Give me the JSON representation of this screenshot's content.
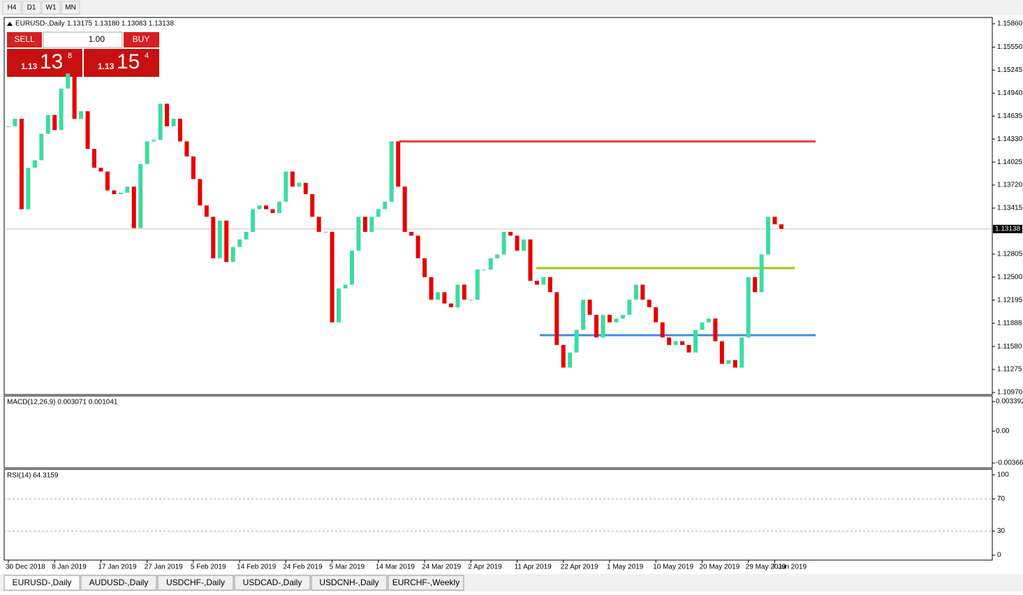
{
  "timeframes": [
    "H4",
    "D1",
    "W1",
    "MN"
  ],
  "trade_panel": {
    "sell": "SELL",
    "buy": "BUY",
    "lot": "1.00",
    "sell_price": {
      "big": "1.13",
      "pips": "13",
      "frac": "8"
    },
    "buy_price": {
      "big": "1.13",
      "pips": "15",
      "frac": "4"
    }
  },
  "chart_data": {
    "type": "candlestick",
    "title": "EURUSD-,Daily",
    "ohlc_text": "1.13175 1.13180 1.13083 1.13138",
    "categories": [
      "30 Dec 2018",
      null,
      null,
      null,
      null,
      null,
      null,
      "8 Jan 2019",
      null,
      null,
      null,
      null,
      null,
      null,
      "17 Jan 2019",
      null,
      null,
      null,
      null,
      null,
      null,
      "27 Jan 2019",
      null,
      null,
      null,
      null,
      null,
      null,
      "5 Feb 2019",
      null,
      null,
      null,
      null,
      null,
      null,
      "14 Feb 2019",
      null,
      null,
      null,
      null,
      null,
      null,
      "24 Feb 2019",
      null,
      null,
      null,
      null,
      null,
      null,
      "5 Mar 2019",
      null,
      null,
      null,
      null,
      null,
      null,
      "14 Mar 2019",
      null,
      null,
      null,
      null,
      null,
      null,
      "24 Mar 2019",
      null,
      null,
      null,
      null,
      null,
      null,
      "2 Apr 2019",
      null,
      null,
      null,
      null,
      null,
      null,
      "11 Apr 2019",
      null,
      null,
      null,
      null,
      null,
      null,
      "22 Apr 2019",
      null,
      null,
      null,
      null,
      null,
      null,
      "1 May 2019",
      null,
      null,
      null,
      null,
      null,
      null,
      "10 May 2019",
      null,
      null,
      null,
      null,
      null,
      null,
      "20 May 2019",
      null,
      null,
      null,
      null,
      null,
      null,
      "29 May 2019",
      null,
      null,
      null,
      "7 Jun 2019",
      null
    ],
    "values": [
      1.145,
      1.146,
      1.134,
      1.1395,
      1.1405,
      1.144,
      1.1465,
      1.1445,
      1.15,
      1.152,
      1.146,
      1.147,
      1.142,
      1.1395,
      1.139,
      1.1365,
      1.136,
      1.1362,
      1.137,
      1.1315,
      1.14,
      1.143,
      1.1432,
      1.148,
      1.145,
      1.146,
      1.143,
      1.141,
      1.138,
      1.1345,
      1.133,
      1.1275,
      1.1325,
      1.127,
      1.129,
      1.13,
      1.131,
      1.134,
      1.1345,
      1.134,
      1.1335,
      1.135,
      1.139,
      1.137,
      1.1375,
      1.136,
      1.133,
      1.131,
      1.131,
      1.119,
      1.1235,
      1.124,
      1.1285,
      1.133,
      1.131,
      1.133,
      1.134,
      1.135,
      1.143,
      1.137,
      1.131,
      1.1305,
      1.1275,
      1.125,
      1.122,
      1.123,
      1.1215,
      1.121,
      1.124,
      1.122,
      1.122,
      1.126,
      1.126,
      1.1275,
      1.128,
      1.131,
      1.1305,
      1.1285,
      1.13,
      1.1245,
      1.124,
      1.125,
      1.123,
      1.116,
      1.113,
      1.115,
      1.118,
      1.122,
      1.12,
      1.117,
      1.12,
      1.119,
      1.1195,
      1.12,
      1.122,
      1.124,
      1.122,
      1.121,
      1.119,
      1.117,
      1.116,
      1.1165,
      1.116,
      1.115,
      1.118,
      1.119,
      1.1195,
      1.1165,
      1.1135,
      1.114,
      1.113,
      1.117,
      1.125,
      1.123,
      1.128,
      1.133,
      1.132,
      1.1314
    ],
    "up_color": "#3cdca0",
    "down_color": "#e80000",
    "ylim": [
      1.1097,
      1.1586
    ],
    "yticks": [
      {
        "value": 1.1586,
        "label": "1.15860"
      },
      {
        "value": 1.1555,
        "label": "1.15550"
      },
      {
        "value": 1.15245,
        "label": "1.15245"
      },
      {
        "value": 1.1494,
        "label": "1.14940"
      },
      {
        "value": 1.14635,
        "label": "1.14635"
      },
      {
        "value": 1.1433,
        "label": "1.14330"
      },
      {
        "value": 1.14025,
        "label": "1.14025"
      },
      {
        "value": 1.1372,
        "label": "1.13720"
      },
      {
        "value": 1.13415,
        "label": "1.13415"
      },
      {
        "value": 1.12805,
        "label": "1.12805"
      },
      {
        "value": 1.125,
        "label": "1.12500"
      },
      {
        "value": 1.12195,
        "label": "1.12195"
      },
      {
        "value": 1.11888,
        "label": "1.11888"
      },
      {
        "value": 1.1158,
        "label": "1.11580"
      },
      {
        "value": 1.11275,
        "label": "1.11275"
      },
      {
        "value": 1.1097,
        "label": "1.10970"
      }
    ],
    "current_price": {
      "value": 1.13138,
      "label": "1.13138"
    },
    "levels": [
      {
        "value": 1.143,
        "color": "#e84040"
      },
      {
        "value": 1.1262,
        "color": "#9ac51a"
      },
      {
        "value": 1.1173,
        "color": "#3c8ee0"
      }
    ],
    "macd": {
      "label": "MACD(12,26,9) 0.003071 0.001041",
      "ylim": [
        -0.003664,
        0.003392
      ],
      "yticks": [
        {
          "value": 0.003392,
          "label": "0.003392"
        },
        {
          "value": 0,
          "label": "0.00"
        },
        {
          "value": -0.003664,
          "label": "-0.003664"
        }
      ]
    },
    "rsi": {
      "label": "RSI(14) 64.3159",
      "ylim": [
        0,
        100
      ],
      "yticks": [
        100,
        70,
        30,
        0
      ],
      "levels": [
        70,
        30
      ]
    }
  },
  "tabs": [
    "EURUSD-,Daily",
    "AUDUSD-,Daily",
    "USDCHF-,Daily",
    "USDCAD-,Daily",
    "USDCNH-,Daily",
    "EURCHF-,Weekly"
  ]
}
